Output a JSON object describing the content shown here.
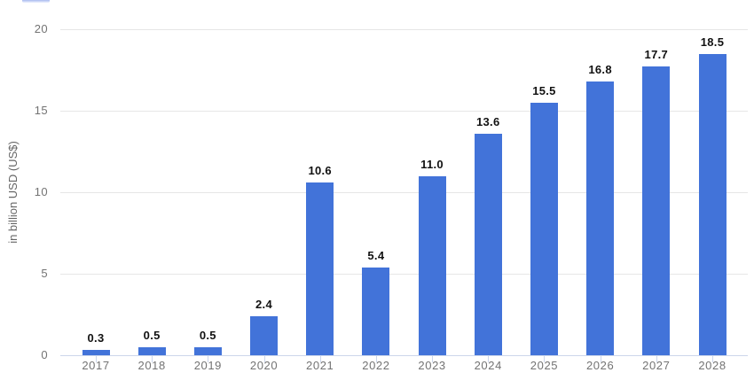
{
  "page": {
    "background": "#ffffff"
  },
  "legend_stub": {
    "note": "partially cropped blue element at top-left edge"
  },
  "chart_data": {
    "type": "bar",
    "title": "",
    "subtitle": "",
    "categories": [
      "2017",
      "2018",
      "2019",
      "2020",
      "2021",
      "2022",
      "2023",
      "2024",
      "2025",
      "2026",
      "2027",
      "2028"
    ],
    "values": [
      0.3,
      0.5,
      0.5,
      2.4,
      10.6,
      5.4,
      11.0,
      13.6,
      15.5,
      16.8,
      17.7,
      18.5
    ],
    "value_labels": [
      "0.3",
      "0.5",
      "0.5",
      "2.4",
      "10.6",
      "5.4",
      "11.0",
      "13.6",
      "15.5",
      "16.8",
      "17.7",
      "18.5"
    ],
    "xlabel": "",
    "ylabel": "in billion USD (US$)",
    "ylim": [
      0,
      20
    ],
    "yticks": [
      0,
      5,
      10,
      15,
      20
    ],
    "grid": true,
    "legend_position": "none",
    "colors": {
      "bar": "#4273d9",
      "value_label": "#111111",
      "axis_text": "#737373",
      "gridline": "#e6e6e6",
      "axis_line": "#ccd6eb",
      "tick_mark": "#ccd6eb",
      "y_axis_title": "#666666"
    }
  }
}
